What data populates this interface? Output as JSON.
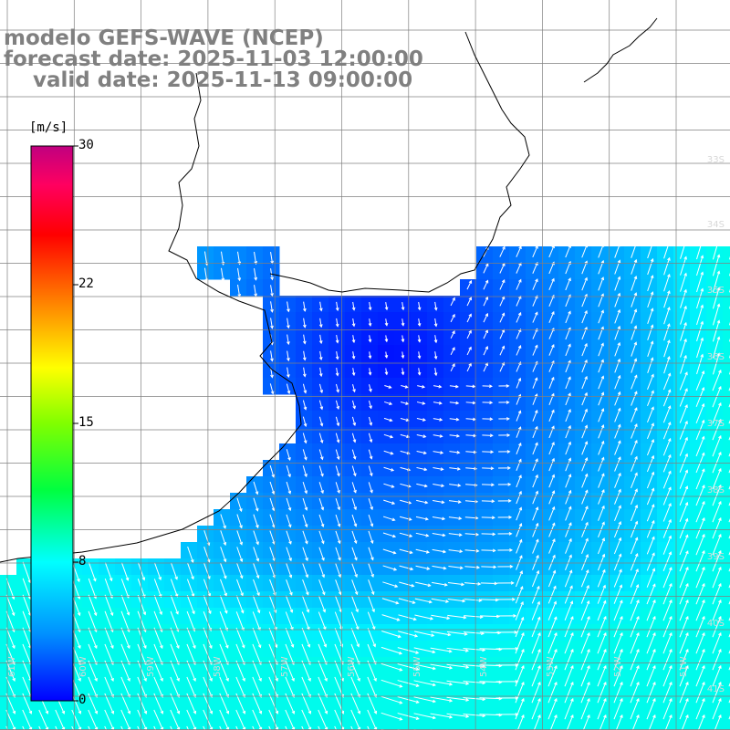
{
  "title": {
    "line1": "modelo GEFS-WAVE (NCEP)",
    "line2": "forecast date: 2025-11-03 12:00:00",
    "line3": "    valid date: 2025-11-13 09:00:00"
  },
  "colorbar": {
    "unit": "[m/s]",
    "ticks": [
      "30",
      "22",
      "15",
      "8",
      "0"
    ],
    "stops": [
      "#0000ff",
      "#0090ff",
      "#00ffff",
      "#00ff40",
      "#80ff00",
      "#ffff00",
      "#ff8000",
      "#ff0000",
      "#ff0060",
      "#c00080"
    ]
  },
  "lat_labels": [
    "33S",
    "34S",
    "35S",
    "36S",
    "37S",
    "38S",
    "39S",
    "40S",
    "41S"
  ],
  "lon_labels": [
    "61W",
    "60W",
    "59W",
    "58W",
    "57W",
    "56W",
    "55W",
    "54W",
    "53W",
    "52W",
    "51W"
  ],
  "colors": {
    "land": "#ffffff",
    "coast": "#000000",
    "grid": "#808080",
    "arrow": "#ffffff"
  }
}
